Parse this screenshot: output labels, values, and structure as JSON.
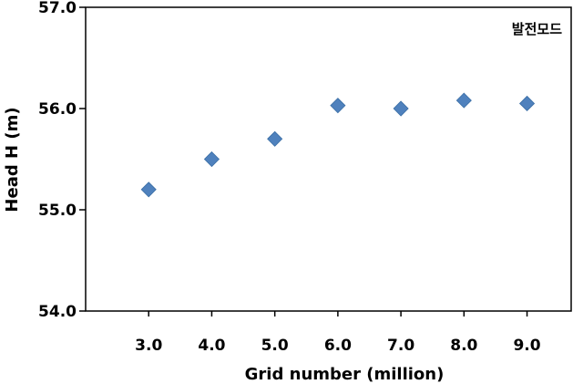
{
  "chart_data": {
    "type": "scatter",
    "title": "",
    "xlabel": "Grid number (million)",
    "ylabel": "Head H (m)",
    "annotation": "발전모드",
    "xlim": [
      2.0,
      9.7
    ],
    "ylim": [
      54.0,
      57.0
    ],
    "x_ticks": [
      "3.0",
      "4.0",
      "5.0",
      "6.0",
      "7.0",
      "8.0",
      "9.0"
    ],
    "y_ticks": [
      "54.0",
      "55.0",
      "56.0",
      "57.0"
    ],
    "marker": "diamond",
    "marker_color": "#4F81BD",
    "legend": "none",
    "grid": false,
    "series": [
      {
        "points": [
          {
            "x": 3.0,
            "y": 55.2
          },
          {
            "x": 4.0,
            "y": 55.5
          },
          {
            "x": 5.0,
            "y": 55.7
          },
          {
            "x": 6.0,
            "y": 56.03
          },
          {
            "x": 7.0,
            "y": 56.0
          },
          {
            "x": 8.0,
            "y": 56.08
          },
          {
            "x": 9.0,
            "y": 56.05
          }
        ]
      }
    ]
  }
}
